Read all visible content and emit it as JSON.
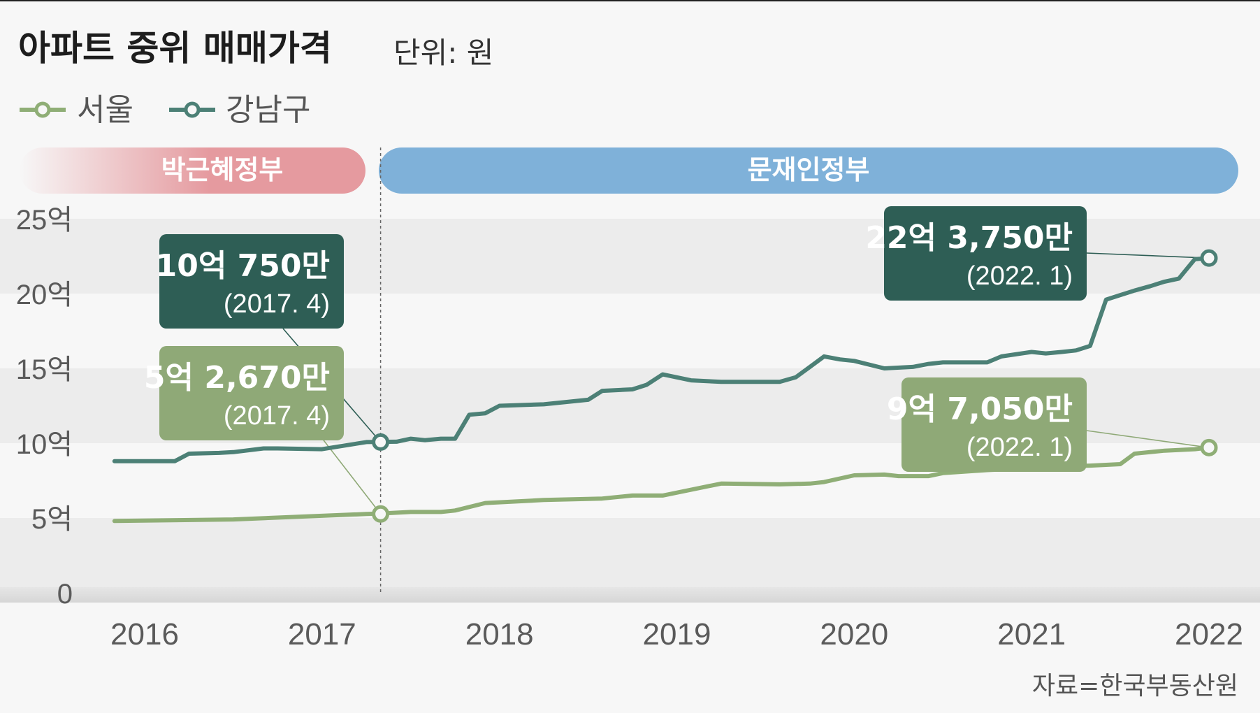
{
  "header": {
    "title": "아파트 중위 매매가격",
    "unit": "단위: 원"
  },
  "legend": [
    {
      "label": "서울",
      "color": "#8fae76"
    },
    {
      "label": "강남구",
      "color": "#4c8076"
    }
  ],
  "eras": [
    {
      "label": "박근혜정부",
      "color": "#e59a9f"
    },
    {
      "label": "문재인정부",
      "color": "#7fb1d9"
    }
  ],
  "source": "자료=한국부동산원",
  "colors": {
    "seoul": "#8fae76",
    "gangnam": "#4c8076",
    "gangnam_box": "#2e5e55",
    "seoul_box": "#8fa977",
    "band": "#ececec",
    "background": "#f7f7f7"
  },
  "callouts": [
    {
      "series": "강남구",
      "value": "10억 750만",
      "date": "(2017. 4)"
    },
    {
      "series": "서울",
      "value": "5억 2,670만",
      "date": "(2017. 4)"
    },
    {
      "series": "강남구",
      "value": "22억 3,750만",
      "date": "(2022. 1)"
    },
    {
      "series": "서울",
      "value": "9억 7,050만",
      "date": "(2022. 1)"
    }
  ],
  "chart_data": {
    "type": "line",
    "title": "아파트 중위 매매가격",
    "subtitle": "단위: 원",
    "xlabel": "",
    "ylabel": "",
    "x_ticks": [
      "2016",
      "2017",
      "2018",
      "2019",
      "2020",
      "2021",
      "2022"
    ],
    "y_ticks": [
      "0",
      "5억",
      "10억",
      "15억",
      "20억",
      "25억"
    ],
    "ylim": [
      0,
      25
    ],
    "xlim": [
      2015.8,
      2022.1
    ],
    "grid": "alternating bands",
    "legend_position": "top-left",
    "series": [
      {
        "name": "강남구",
        "x": [
          2015.83,
          2016.0,
          2016.17,
          2016.25,
          2016.42,
          2016.5,
          2016.67,
          2016.75,
          2017.0,
          2017.25,
          2017.42,
          2017.5,
          2017.58,
          2017.67,
          2017.75,
          2017.83,
          2017.92,
          2018.0,
          2018.25,
          2018.5,
          2018.58,
          2018.75,
          2018.83,
          2018.92,
          2019.0,
          2019.08,
          2019.25,
          2019.58,
          2019.67,
          2019.75,
          2019.83,
          2019.92,
          2020.0,
          2020.17,
          2020.33,
          2020.42,
          2020.5,
          2020.75,
          2020.83,
          2021.0,
          2021.08,
          2021.17,
          2021.25,
          2021.33,
          2021.42,
          2021.5,
          2021.58,
          2021.67,
          2021.75,
          2021.83,
          2021.92,
          2022.0
        ],
        "values": [
          8.8,
          8.8,
          8.8,
          9.3,
          9.35,
          9.4,
          9.65,
          9.65,
          9.6,
          10.075,
          10.1,
          10.3,
          10.2,
          10.3,
          10.3,
          11.9,
          12.0,
          12.5,
          12.6,
          12.9,
          13.5,
          13.6,
          13.9,
          14.6,
          14.4,
          14.2,
          14.1,
          14.1,
          14.4,
          15.1,
          15.8,
          15.6,
          15.5,
          15.0,
          15.1,
          15.3,
          15.4,
          15.4,
          15.8,
          16.1,
          16.0,
          16.1,
          16.2,
          16.5,
          19.6,
          19.9,
          20.2,
          20.5,
          20.8,
          21.0,
          22.3,
          22.375
        ]
      },
      {
        "name": "서울",
        "x": [
          2015.83,
          2016.5,
          2017.25,
          2017.33,
          2017.5,
          2017.67,
          2017.75,
          2017.92,
          2018.25,
          2018.58,
          2018.75,
          2018.92,
          2019.25,
          2019.58,
          2019.75,
          2019.83,
          2020.0,
          2020.17,
          2020.25,
          2020.42,
          2020.5,
          2020.75,
          2020.92,
          2021.17,
          2021.33,
          2021.5,
          2021.58,
          2021.75,
          2021.92,
          2022.0
        ],
        "values": [
          4.8,
          4.9,
          5.267,
          5.3,
          5.4,
          5.4,
          5.5,
          6.0,
          6.2,
          6.3,
          6.5,
          6.5,
          7.3,
          7.25,
          7.3,
          7.4,
          7.85,
          7.9,
          7.8,
          7.8,
          8.0,
          8.2,
          8.3,
          8.45,
          8.5,
          8.6,
          9.3,
          9.5,
          9.6,
          9.705
        ]
      }
    ],
    "annotations": [
      {
        "series": "강남구",
        "x": 2017.33,
        "y": 10.075,
        "text": "10억 750만 (2017. 4)"
      },
      {
        "series": "서울",
        "x": 2017.33,
        "y": 5.267,
        "text": "5억 2,670만 (2017. 4)"
      },
      {
        "series": "강남구",
        "x": 2022.0,
        "y": 22.375,
        "text": "22억 3,750만 (2022. 1)"
      },
      {
        "series": "서울",
        "x": 2022.0,
        "y": 9.705,
        "text": "9억 7,050만 (2022. 1)"
      }
    ],
    "eras": [
      {
        "label": "박근혜정부",
        "x_end": 2017.33
      },
      {
        "label": "문재인정부",
        "x_start": 2017.33
      }
    ]
  }
}
